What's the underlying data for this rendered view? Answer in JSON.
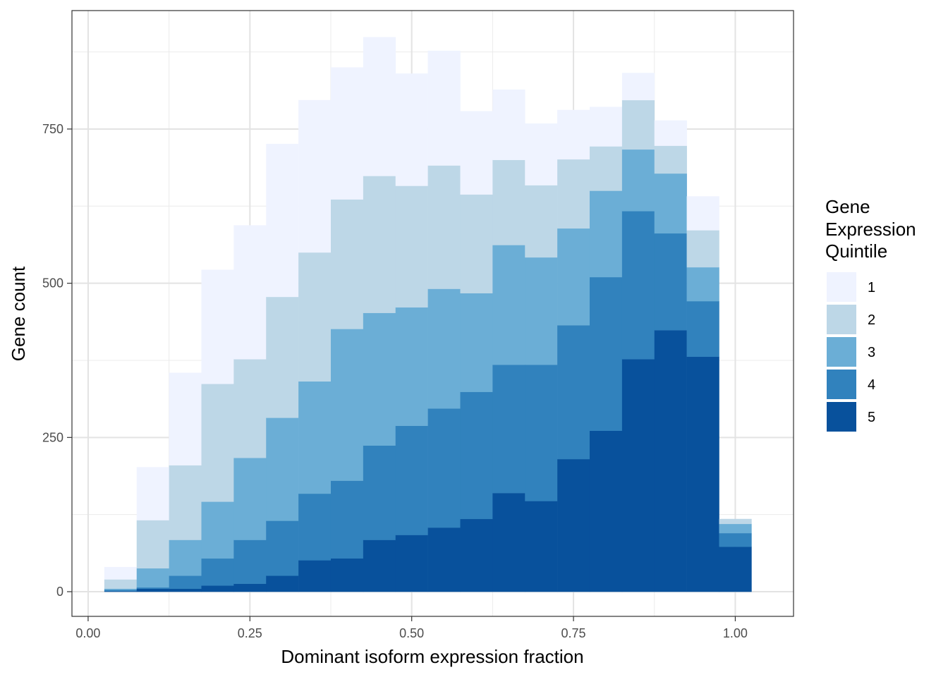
{
  "chart_data": {
    "type": "bar",
    "stacked": true,
    "xlabel": "Dominant isoform expression fraction",
    "ylabel": "Gene count",
    "xlim": [
      -0.025,
      1.09
    ],
    "ylim": [
      -40,
      942
    ],
    "x_ticks": [
      0.0,
      0.25,
      0.5,
      0.75,
      1.0
    ],
    "x_tick_labels": [
      "0.00",
      "0.25",
      "0.50",
      "0.75",
      "1.00"
    ],
    "y_ticks": [
      0,
      250,
      500,
      750
    ],
    "y_tick_labels": [
      "0",
      "250",
      "500",
      "750"
    ],
    "grid": true,
    "bin_width": 0.05,
    "bin_centers": [
      0.05,
      0.1,
      0.15,
      0.2,
      0.25,
      0.3,
      0.35,
      0.4,
      0.45,
      0.5,
      0.55,
      0.6,
      0.65,
      0.7,
      0.75,
      0.8,
      0.85,
      0.9,
      0.95,
      1.0
    ],
    "legend": {
      "title_lines": [
        "Gene",
        "Expression",
        "Quintile"
      ],
      "position": "right"
    },
    "series": [
      {
        "name": "5",
        "color": "#08519c",
        "values": [
          1,
          5,
          5,
          10,
          13,
          26,
          51,
          54,
          84,
          92,
          104,
          118,
          160,
          147,
          215,
          261,
          377,
          424,
          381,
          73
        ]
      },
      {
        "name": "4",
        "color": "#3182bd",
        "values": [
          2,
          2,
          21,
          44,
          71,
          89,
          108,
          126,
          153,
          177,
          193,
          206,
          208,
          221,
          217,
          249,
          240,
          157,
          90,
          22
        ]
      },
      {
        "name": "3",
        "color": "#6baed6",
        "values": [
          2,
          31,
          58,
          92,
          133,
          167,
          182,
          246,
          215,
          192,
          194,
          160,
          194,
          174,
          157,
          140,
          100,
          97,
          55,
          15
        ]
      },
      {
        "name": "2",
        "color": "#bdd7e7",
        "values": [
          15,
          78,
          121,
          191,
          160,
          196,
          209,
          210,
          222,
          197,
          200,
          160,
          138,
          117,
          112,
          72,
          80,
          45,
          60,
          8
        ]
      },
      {
        "name": "1",
        "color": "#eff3ff",
        "values": [
          20,
          86,
          150,
          185,
          217,
          248,
          247,
          214,
          225,
          182,
          186,
          135,
          114,
          100,
          80,
          64,
          44,
          41,
          55,
          0
        ]
      }
    ]
  }
}
